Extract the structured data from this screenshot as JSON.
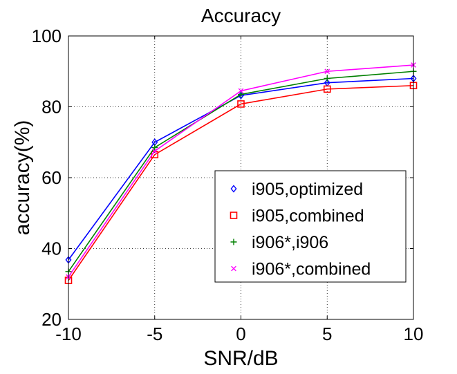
{
  "chart_data": {
    "type": "line",
    "title": "Accuracy",
    "xlabel": "SNR/dB",
    "ylabel": "accuracy(%)",
    "xlim": [
      -10,
      10
    ],
    "ylim": [
      20,
      100
    ],
    "x": [
      -10,
      -5,
      0,
      5,
      10
    ],
    "xticks": [
      -10,
      -5,
      0,
      5,
      10
    ],
    "yticks": [
      20,
      40,
      60,
      80,
      100
    ],
    "xtick_labels": [
      "-10",
      "-5",
      "0",
      "5",
      "10"
    ],
    "ytick_labels": [
      "20",
      "40",
      "60",
      "80",
      "100"
    ],
    "grid": true,
    "legend_position": "lower-right",
    "series": [
      {
        "name": "i905,optimized",
        "color": "#0000ff",
        "marker": "diamond",
        "values": [
          36.8,
          70.0,
          83.2,
          86.8,
          88.0
        ]
      },
      {
        "name": "i905,combined",
        "color": "#ff0000",
        "marker": "square",
        "values": [
          31.0,
          66.5,
          80.8,
          85.0,
          86.0
        ]
      },
      {
        "name": "i906*,i906",
        "color": "#008000",
        "marker": "plus",
        "values": [
          33.5,
          68.5,
          83.5,
          88.0,
          90.0
        ]
      },
      {
        "name": "i906*,combined",
        "color": "#ff00ff",
        "marker": "x",
        "values": [
          32.0,
          67.5,
          84.5,
          90.0,
          91.8
        ]
      }
    ]
  }
}
